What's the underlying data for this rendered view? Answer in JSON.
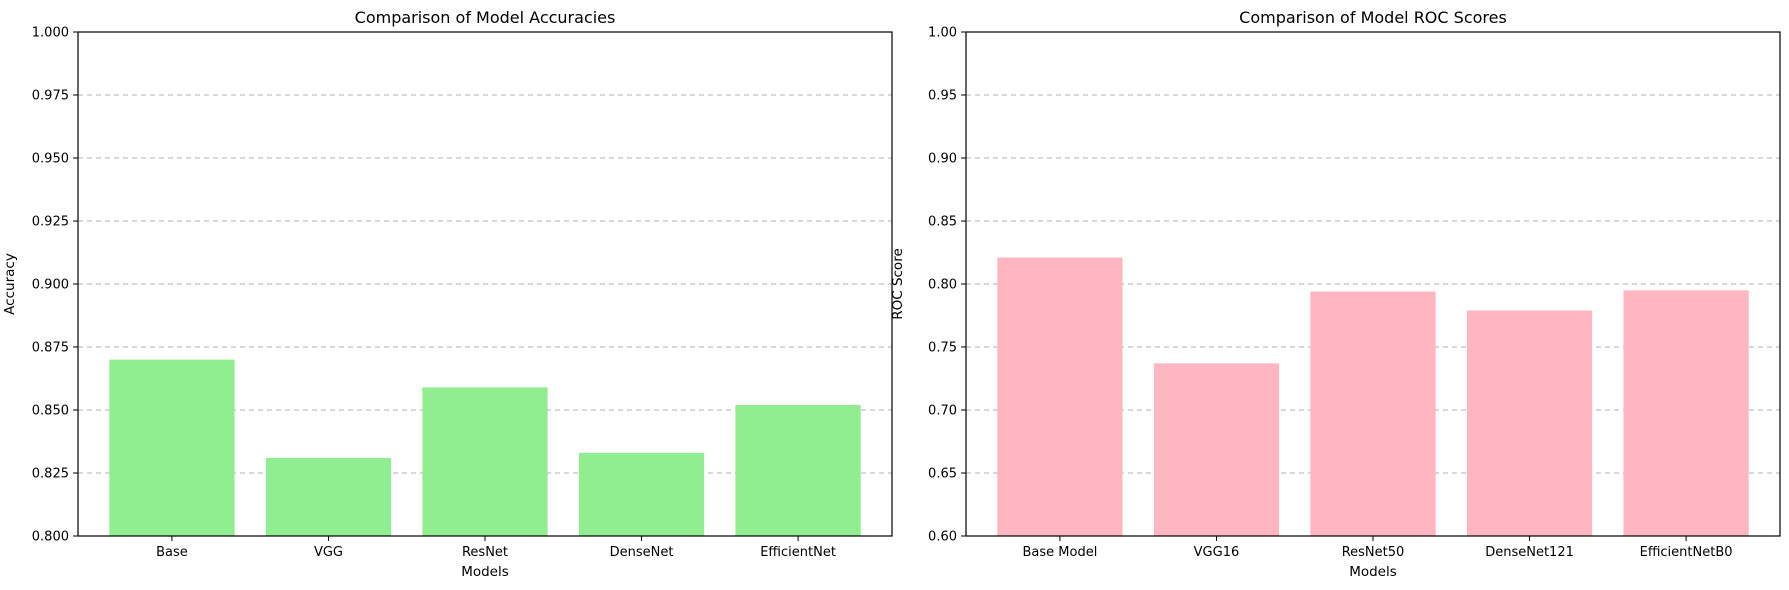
{
  "chart_data": [
    {
      "type": "bar",
      "title": "Comparison of Model Accuracies",
      "xlabel": "Models",
      "ylabel": "Accuracy",
      "categories": [
        "Base",
        "VGG",
        "ResNet",
        "DenseNet",
        "EfficientNet"
      ],
      "values": [
        0.87,
        0.831,
        0.859,
        0.833,
        0.852
      ],
      "ylim": [
        0.8,
        1.0
      ],
      "yticks": [
        "0.800",
        "0.825",
        "0.850",
        "0.875",
        "0.900",
        "0.925",
        "0.950",
        "0.975",
        "1.000"
      ],
      "grid": "y-dashed",
      "color": "#90EE90"
    },
    {
      "type": "bar",
      "title": "Comparison of Model ROC Scores",
      "xlabel": "Models",
      "ylabel": "ROC Score",
      "categories": [
        "Base Model",
        "VGG16",
        "ResNet50",
        "DenseNet121",
        "EfficientNetB0"
      ],
      "values": [
        0.821,
        0.737,
        0.794,
        0.779,
        0.795
      ],
      "ylim": [
        0.6,
        1.0
      ],
      "yticks": [
        "0.60",
        "0.65",
        "0.70",
        "0.75",
        "0.80",
        "0.85",
        "0.90",
        "0.95",
        "1.00"
      ],
      "grid": "y-dashed",
      "color": "#FFB6C1"
    }
  ]
}
